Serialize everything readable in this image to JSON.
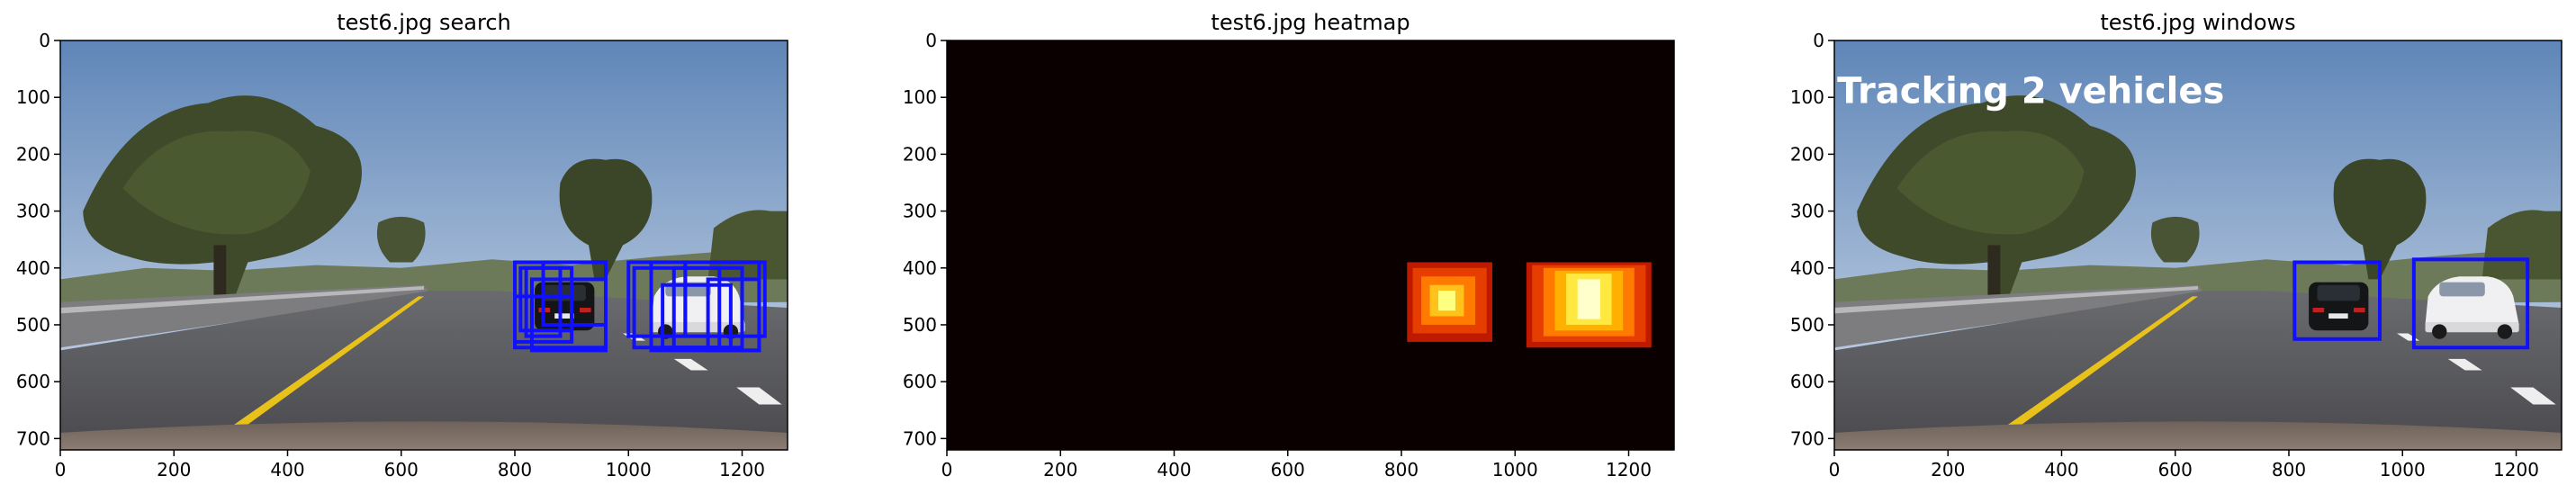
{
  "panels": [
    {
      "id": "search",
      "title": "test6.jpg search",
      "kind": "photo",
      "x_ticks": [
        "0",
        "200",
        "400",
        "600",
        "800",
        "1000",
        "1200"
      ],
      "y_ticks": [
        "0",
        "100",
        "200",
        "300",
        "400",
        "500",
        "600",
        "700"
      ],
      "box_color": "#1010ff",
      "boxes": [
        [
          800,
          390,
          960,
          540
        ],
        [
          810,
          400,
          900,
          510
        ],
        [
          820,
          400,
          880,
          520
        ],
        [
          830,
          420,
          960,
          545
        ],
        [
          800,
          450,
          900,
          530
        ],
        [
          850,
          390,
          960,
          500
        ],
        [
          1000,
          390,
          1100,
          520
        ],
        [
          1010,
          400,
          1160,
          540
        ],
        [
          1040,
          390,
          1230,
          545
        ],
        [
          1080,
          400,
          1200,
          540
        ],
        [
          1100,
          390,
          1240,
          520
        ],
        [
          1140,
          420,
          1230,
          545
        ],
        [
          1060,
          430,
          1180,
          540
        ]
      ]
    },
    {
      "id": "heatmap",
      "title": "test6.jpg heatmap",
      "kind": "heatmap",
      "x_ticks": [
        "0",
        "200",
        "400",
        "600",
        "800",
        "1000",
        "1200"
      ],
      "y_ticks": [
        "0",
        "100",
        "200",
        "300",
        "400",
        "500",
        "600",
        "700"
      ],
      "background": "#0b0000",
      "blobs": [
        [
          810,
          390,
          960,
          530,
          "#bf1a00"
        ],
        [
          820,
          400,
          950,
          515,
          "#e63d00"
        ],
        [
          835,
          415,
          930,
          500,
          "#ff7a00"
        ],
        [
          850,
          430,
          910,
          485,
          "#ffc21a"
        ],
        [
          865,
          440,
          895,
          475,
          "#ffff80"
        ],
        [
          1020,
          390,
          1240,
          540,
          "#bf1a00"
        ],
        [
          1030,
          395,
          1230,
          530,
          "#e63d00"
        ],
        [
          1050,
          400,
          1210,
          520,
          "#ff7a00"
        ],
        [
          1070,
          405,
          1190,
          510,
          "#ffb000"
        ],
        [
          1090,
          410,
          1170,
          500,
          "#ffe840"
        ],
        [
          1110,
          420,
          1150,
          490,
          "#ffffcc"
        ]
      ]
    },
    {
      "id": "windows",
      "title": "test6.jpg windows",
      "kind": "photo",
      "x_ticks": [
        "0",
        "200",
        "400",
        "600",
        "800",
        "1000",
        "1200"
      ],
      "y_ticks": [
        "0",
        "100",
        "200",
        "300",
        "400",
        "500",
        "600",
        "700"
      ],
      "box_color": "#1010ff",
      "boxes": [
        [
          810,
          390,
          960,
          525
        ],
        [
          1020,
          385,
          1220,
          540
        ]
      ],
      "overlay_text": "Tracking 2 vehicles"
    }
  ],
  "colors": {
    "sky_top": "#6a8fbf",
    "sky_bottom": "#c9d6e6",
    "road": "#55565a",
    "lane_yellow": "#e8c21a",
    "lane_white": "#f2f2f2"
  }
}
